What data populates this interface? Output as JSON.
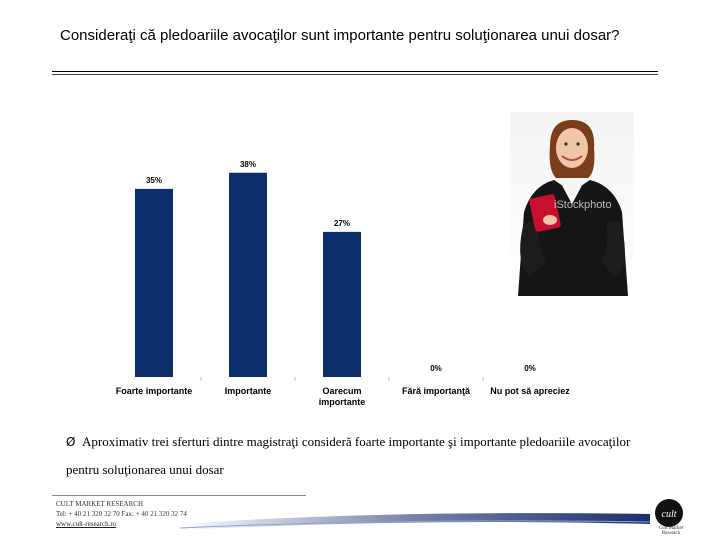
{
  "header": {
    "question": "Consideraţi că pledoariile avocaţilor sunt importante pentru soluţionarea unui dosar?"
  },
  "chart_data": {
    "type": "bar",
    "categories": [
      "Foarte importante",
      "Importante",
      "Oarecum importante",
      "Fără importanţă",
      "Nu pot să apreciez"
    ],
    "values": [
      35,
      38,
      27,
      0,
      0
    ],
    "value_labels": [
      "35%",
      "38%",
      "27%",
      "0%",
      "0%"
    ],
    "ylim": [
      0,
      40
    ],
    "grid": false,
    "legend": "none",
    "bar_color": "#0b2e6b"
  },
  "conclusion": {
    "bullet": "Ø",
    "text": "Aproximativ trei sferturi dintre magistraţi consideră foarte importante şi importante pledoariile avocaţilor pentru soluţionarea unui dosar"
  },
  "photo": {
    "watermark": "iStockphoto"
  },
  "footer": {
    "company": "CULT MARKET RESEARCH",
    "contact": "Tel: + 40 21 320 32 70  Fax: + 40 21 320 32 74",
    "website": "www.cult-research.ro"
  },
  "logo": {
    "mark": "cult",
    "label": "Cult Market Research"
  },
  "colors": {
    "bar": "#0b2e6b",
    "swoosh": "#1a2f6e"
  }
}
